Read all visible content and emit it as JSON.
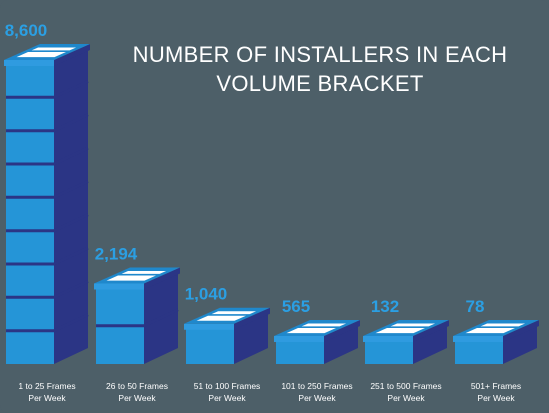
{
  "title_lines": [
    "NUMBER OF INSTALLERS IN EACH",
    "VOLUME BRACKET"
  ],
  "colors": {
    "background": "#4d5f68",
    "front": "#2595d7",
    "side": "#2b3585",
    "top": "#1f88cc",
    "lid": "#2f9be0",
    "value_label": "#2b9fe3",
    "category_label": "#ffffff"
  },
  "chart_data": {
    "type": "bar",
    "style": "3d-stacked-boxes",
    "title": "NUMBER OF INSTALLERS IN EACH VOLUME BRACKET",
    "xlabel": "",
    "ylabel": "",
    "categories": [
      [
        "1 to 25 Frames",
        "Per Week"
      ],
      [
        "26 to 50 Frames",
        "Per Week"
      ],
      [
        "51 to 100 Frames",
        "Per Week"
      ],
      [
        "101 to 250 Frames",
        "Per Week"
      ],
      [
        "251 to 500 Frames",
        "Per Week"
      ],
      [
        "501+ Frames",
        "Per Week"
      ]
    ],
    "values": [
      8600,
      2194,
      1040,
      565,
      132,
      78
    ],
    "value_labels": [
      "8,600",
      "2,194",
      "1,040",
      "565",
      "132",
      "78"
    ],
    "grid": false,
    "legend": "none"
  }
}
